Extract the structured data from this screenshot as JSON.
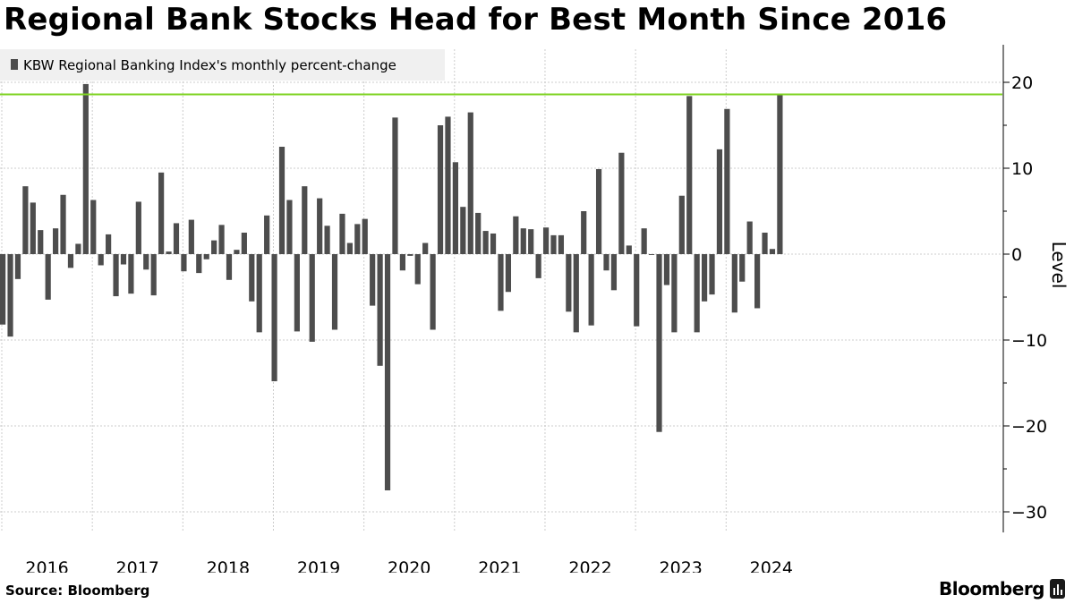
{
  "title": "Regional Bank Stocks Head for Best Month Since 2016",
  "source": "Source: Bloomberg",
  "brand": "Bloomberg",
  "brand_icon": "bloomberg-terminal-icon",
  "colors": {
    "bar": "#4d4d4d",
    "highlight_line": "#7ed321",
    "grid": "#cccccc",
    "legend_bg": "#f0f0f0"
  },
  "chart_data": {
    "type": "bar",
    "title": "Regional Bank Stocks Head for Best Month Since 2016",
    "legend": [
      "KBW Regional Banking Index's monthly percent-change"
    ],
    "legend_position": "top-left",
    "ylabel": "Level",
    "xlabel": "",
    "ylim": [
      -32,
      25
    ],
    "yticks": [
      20,
      10,
      0,
      -10,
      -20,
      -30
    ],
    "reference_line": {
      "value": 18.6,
      "label": ""
    },
    "x_tick_labels": [
      "2016",
      "2017",
      "2018",
      "2019",
      "2020",
      "2021",
      "2022",
      "2023",
      "2024"
    ],
    "start": "2016-01",
    "series": [
      {
        "name": "KBW Regional Banking Index's monthly percent-change",
        "values": [
          -8.2,
          -9.6,
          -2.9,
          7.9,
          6.0,
          2.8,
          -5.3,
          3.0,
          6.9,
          -1.6,
          1.2,
          19.8,
          6.3,
          -1.3,
          2.3,
          -4.9,
          -1.2,
          -4.6,
          6.1,
          -1.8,
          -4.8,
          9.5,
          0.3,
          3.6,
          -2.0,
          4.0,
          -2.2,
          -0.6,
          1.6,
          3.4,
          -3.0,
          0.5,
          2.5,
          -5.5,
          -9.1,
          4.5,
          -14.8,
          12.5,
          6.3,
          -9.0,
          7.9,
          -10.2,
          6.5,
          3.3,
          -8.8,
          4.7,
          1.3,
          3.5,
          4.1,
          -6.0,
          -13.0,
          -27.5,
          15.9,
          -1.9,
          -0.2,
          -3.5,
          1.3,
          -8.8,
          15.0,
          16.0,
          10.7,
          5.5,
          16.5,
          4.8,
          2.7,
          2.4,
          -6.6,
          -4.4,
          4.4,
          3.0,
          2.9,
          -2.8,
          3.1,
          2.2,
          2.2,
          -6.7,
          -9.1,
          5.0,
          -8.3,
          9.9,
          -1.9,
          -4.2,
          11.8,
          1.0,
          -8.4,
          3.0,
          -0.1,
          -20.7,
          -3.6,
          -9.1,
          6.8,
          18.4,
          -9.1,
          -5.5,
          -4.7,
          12.2,
          16.9,
          -6.8,
          -3.2,
          3.8,
          -6.3,
          2.5,
          0.6,
          18.6
        ]
      }
    ]
  }
}
